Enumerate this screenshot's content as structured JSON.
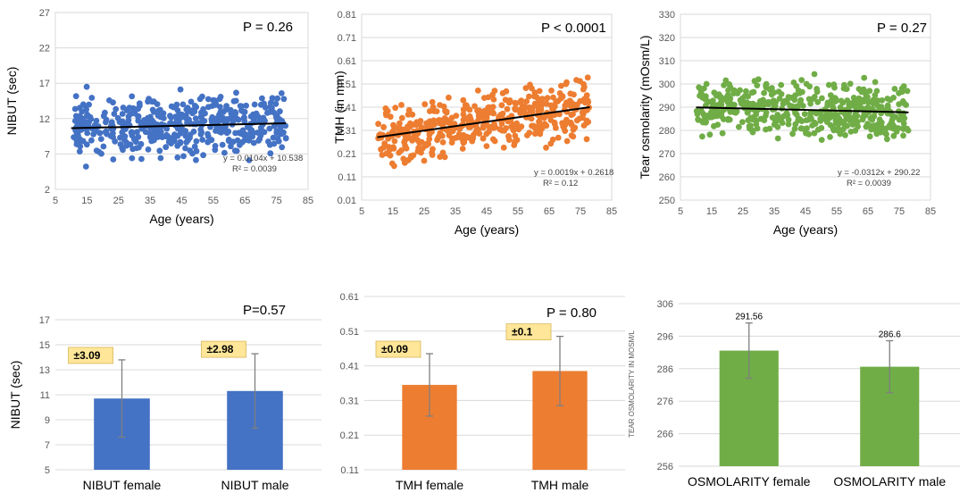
{
  "chart_data": [
    {
      "id": "s1",
      "type": "scatter",
      "color": "#4472C4",
      "xlabel": "Age (years)",
      "ylabel": "NIBUT (sec)",
      "xlim": [
        5,
        85
      ],
      "ylim": [
        2,
        27
      ],
      "x_ticks": [
        "5",
        "15",
        "25",
        "35",
        "45",
        "55",
        "65",
        "75",
        "85"
      ],
      "y_ticks": [
        "2",
        "7",
        "12",
        "17",
        "22",
        "27"
      ],
      "p_value": "P = 0.26",
      "trend": {
        "slope": 0.0104,
        "intercept": 10.538,
        "x_from": 10,
        "x_to": 78
      },
      "equation": "y = 0.0104x + 10.538",
      "r2": "R² = 0.0039",
      "y_range": [
        5.2,
        18.5
      ],
      "y_center": 11.2,
      "y_sd": 2.9,
      "y_slope": 0.0104,
      "y_intercept": 10.538,
      "n_points": 470,
      "seed": 11
    },
    {
      "id": "s2",
      "type": "scatter",
      "color": "#ED7D31",
      "xlabel": "Age (years)",
      "ylabel": "TMH (in mm)",
      "xlim": [
        5,
        85
      ],
      "ylim": [
        0.01,
        0.81
      ],
      "x_ticks": [
        "5",
        "15",
        "25",
        "35",
        "45",
        "55",
        "65",
        "75",
        "85"
      ],
      "y_ticks": [
        "0.01",
        "0.11",
        "0.21",
        "0.31",
        "0.41",
        "0.51",
        "0.61",
        "0.71",
        "0.81"
      ],
      "p_value": "P < 0.0001",
      "trend": {
        "slope": 0.0019,
        "intercept": 0.2618,
        "x_from": 10,
        "x_to": 78
      },
      "equation": "y = 0.0019x + 0.2618",
      "r2": "R² = 0.12",
      "y_range": [
        0.11,
        0.61
      ],
      "y_sd": 0.085,
      "y_slope": 0.0019,
      "y_intercept": 0.2618,
      "n_points": 470,
      "seed": 23
    },
    {
      "id": "s3",
      "type": "scatter",
      "color": "#70AD47",
      "xlabel": "Age (years)",
      "ylabel": "Tear osmolarity  (mOsm/L)",
      "xlim": [
        5,
        85
      ],
      "ylim": [
        250,
        330
      ],
      "x_ticks": [
        "5",
        "15",
        "25",
        "35",
        "45",
        "55",
        "65",
        "75",
        "85"
      ],
      "y_ticks": [
        "250",
        "260",
        "270",
        "280",
        "290",
        "300",
        "310",
        "320",
        "330"
      ],
      "p_value": "P = 0.27",
      "trend": {
        "slope": -0.0312,
        "intercept": 290.22,
        "x_from": 10,
        "x_to": 78
      },
      "equation": "y = -0.0312x + 290.22",
      "r2": "R² = 0.0039",
      "y_range": [
        256,
        309
      ],
      "y_sd": 8,
      "y_slope": -0.0312,
      "y_intercept": 290.22,
      "n_points": 470,
      "seed": 37
    },
    {
      "id": "b1",
      "type": "bar",
      "color": "#4472C4",
      "ylabel": "NIBUT (sec)",
      "ylim": [
        5,
        17
      ],
      "y_ticks": [
        "5",
        "7",
        "9",
        "11",
        "13",
        "15",
        "17"
      ],
      "categories": [
        "NIBUT female",
        "NIBUT male"
      ],
      "values": [
        10.7,
        11.3
      ],
      "errors": [
        3.09,
        2.98
      ],
      "error_labels": [
        "±3.09",
        "±2.98"
      ],
      "p_value": "P=0.57"
    },
    {
      "id": "b2",
      "type": "bar",
      "color": "#ED7D31",
      "ylabel": "",
      "ylim": [
        0.11,
        0.61
      ],
      "y_ticks": [
        "0.11",
        "0.21",
        "0.31",
        "0.41",
        "0.51",
        "0.61"
      ],
      "categories": [
        "TMH female",
        "TMH male"
      ],
      "values": [
        0.355,
        0.395
      ],
      "errors": [
        0.09,
        0.1
      ],
      "error_labels": [
        "±0.09",
        "±0.1"
      ],
      "p_value": "P = 0.80"
    },
    {
      "id": "b3",
      "type": "bar",
      "color": "#70AD47",
      "ylabel": "TEAR OSMOLARITY IN MOSM/L",
      "ylim": [
        256,
        306
      ],
      "y_ticks": [
        "256",
        "266",
        "276",
        "286",
        "296",
        "306"
      ],
      "categories": [
        "OSMOLARITY female",
        "OSMOLARITY male"
      ],
      "values": [
        291.56,
        286.6
      ],
      "errors": [
        8.5,
        8.0
      ],
      "data_labels": [
        "291.56",
        "286.6"
      ]
    }
  ]
}
